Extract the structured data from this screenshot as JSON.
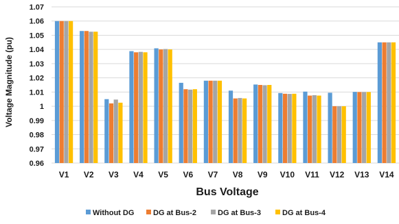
{
  "chart_data": {
    "type": "bar",
    "title": "",
    "xlabel": "Bus Voltage",
    "ylabel": "Voltage Magnitude (pu)",
    "ylim": [
      0.96,
      1.07
    ],
    "ytick_step": 0.01,
    "yticks": [
      "0.96",
      "0.97",
      "0.98",
      "0.99",
      "1",
      "1.01",
      "1.02",
      "1.03",
      "1.04",
      "1.05",
      "1.06",
      "1.07"
    ],
    "grid": true,
    "legend_position": "bottom",
    "categories": [
      "V1",
      "V2",
      "V3",
      "V4",
      "V5",
      "V6",
      "V7",
      "V8",
      "V9",
      "V10",
      "V11",
      "V12",
      "V13",
      "V14"
    ],
    "series": [
      {
        "name": "Without DG",
        "color": "#5b9bd5",
        "values": [
          1.06,
          1.053,
          1.005,
          1.0388,
          1.0408,
          1.0165,
          1.018,
          1.011,
          1.0153,
          1.0093,
          1.0103,
          1.0095,
          1.0101,
          1.045
        ]
      },
      {
        "name": "DG at Bus-2",
        "color": "#ed7d31",
        "values": [
          1.06,
          1.053,
          1.002,
          1.038,
          1.04,
          1.012,
          1.018,
          1.0055,
          1.015,
          1.0088,
          1.0075,
          1.0,
          1.01,
          1.045
        ]
      },
      {
        "name": "DG at Bus-3",
        "color": "#a5a5a5",
        "values": [
          1.06,
          1.0525,
          1.0047,
          1.0383,
          1.0403,
          1.0117,
          1.018,
          1.0058,
          1.0148,
          1.0087,
          1.0078,
          1.0,
          1.01,
          1.045
        ]
      },
      {
        "name": "DG at Bus-4",
        "color": "#ffc000",
        "values": [
          1.06,
          1.0525,
          1.0025,
          1.038,
          1.04,
          1.012,
          1.018,
          1.0055,
          1.015,
          1.0088,
          1.0075,
          1.0,
          1.01,
          1.045
        ]
      }
    ]
  }
}
